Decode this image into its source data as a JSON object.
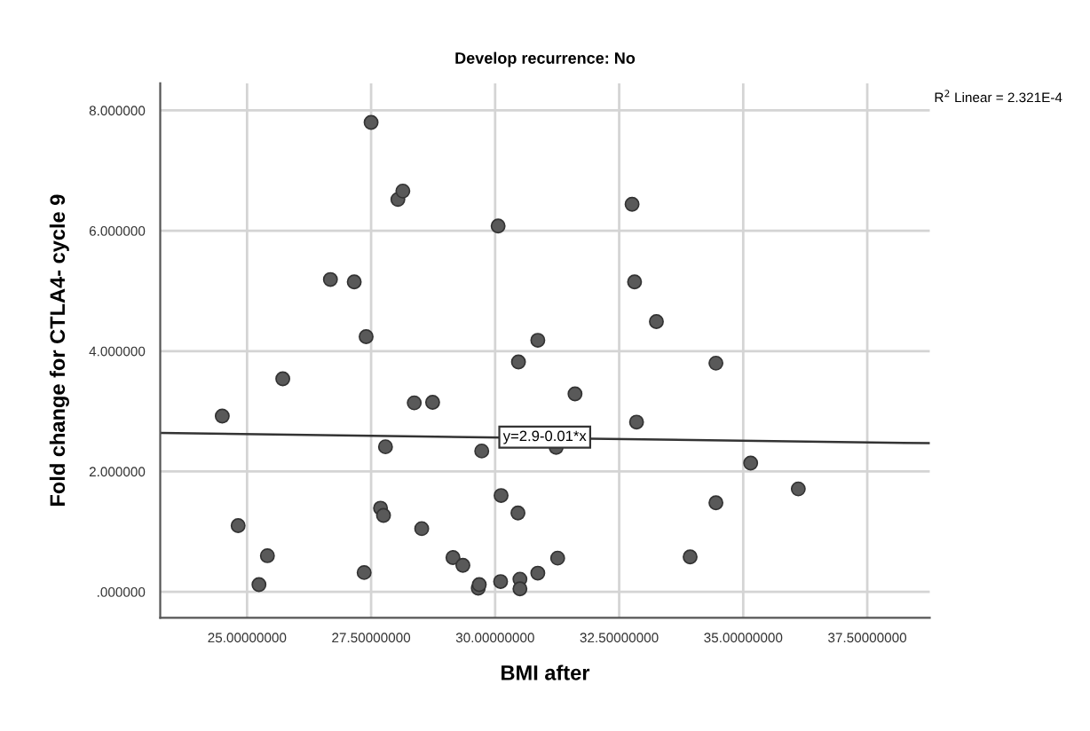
{
  "chart_data": {
    "type": "scatter",
    "title": "Develop recurrence: No",
    "xlabel": "BMI after",
    "ylabel": "Fold change for CTLA4- cycle 9",
    "series": [
      {
        "color": "#595959",
        "marker": "circle",
        "x": [
          24.5,
          24.82,
          25.24,
          25.41,
          25.72,
          26.68,
          27.16,
          27.4,
          27.36,
          27.5,
          27.69,
          27.75,
          27.79,
          28.04,
          28.14,
          28.37,
          28.52,
          28.74,
          29.15,
          29.35,
          29.66,
          29.68,
          29.73,
          30.06,
          30.12,
          30.11,
          30.47,
          30.46,
          30.5,
          30.5,
          30.86,
          30.86,
          31.23,
          31.26,
          31.61,
          32.76,
          32.81,
          32.85,
          33.25,
          33.93,
          34.45,
          34.45,
          35.15,
          36.11
        ],
        "values": [
          2.92,
          1.1,
          0.12,
          0.6,
          3.54,
          5.19,
          5.15,
          4.24,
          0.32,
          7.8,
          1.39,
          1.27,
          2.41,
          6.52,
          6.66,
          3.14,
          1.05,
          3.15,
          0.57,
          0.44,
          0.06,
          0.12,
          2.34,
          6.08,
          1.6,
          0.17,
          3.82,
          1.31,
          0.21,
          0.05,
          4.18,
          0.31,
          2.4,
          0.56,
          3.29,
          6.44,
          5.15,
          2.82,
          4.49,
          0.58,
          3.8,
          1.48,
          2.14,
          1.71
        ]
      },
      {
        "type": "line",
        "color": "#333333",
        "marker": "none",
        "x": [
          23.25,
          38.76
        ],
        "values": [
          2.64,
          2.47
        ]
      }
    ],
    "annotations": [
      {
        "text": "y=2.9-0.01*x",
        "x": 31.0,
        "y": 2.57
      },
      "R$^{2}$ Linear = 2.321E-4"
    ],
    "xlim": [
      23.25,
      38.76
    ],
    "ylim": [
      -0.43,
      8.45
    ],
    "xticks": [
      {
        "value": 25,
        "label": "25.00000000"
      },
      {
        "value": 27.5,
        "label": "27.50000000"
      },
      {
        "value": 30,
        "label": "30.00000000"
      },
      {
        "value": 32.5,
        "label": "32.50000000"
      },
      {
        "value": 35,
        "label": "35.00000000"
      },
      {
        "value": 37.5,
        "label": "37.50000000"
      }
    ],
    "yticks": [
      {
        "value": 0,
        "label": ".000000"
      },
      {
        "value": 2,
        "label": "2.000000"
      },
      {
        "value": 4,
        "label": "4.000000"
      },
      {
        "value": 6,
        "label": "6.000000"
      },
      {
        "value": 8,
        "label": "8.000000"
      }
    ],
    "grid": true,
    "legend": false
  }
}
